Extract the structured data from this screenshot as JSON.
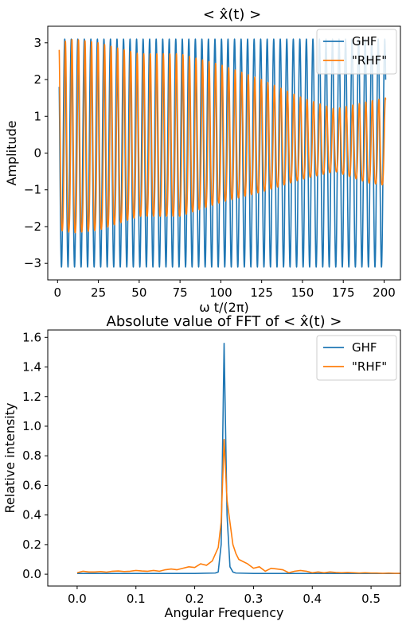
{
  "chart_data": [
    {
      "type": "line",
      "title": "< x̂(t) >",
      "xlabel": "ω t/(2π)",
      "ylabel": "Amplitude",
      "xlim": [
        -6,
        210
      ],
      "ylim": [
        -3.45,
        3.45
      ],
      "xticks": [
        0,
        25,
        50,
        75,
        100,
        125,
        150,
        175,
        200
      ],
      "yticks": [
        -3,
        -2,
        -1,
        0,
        1,
        2,
        3
      ],
      "legend_position": "top-right",
      "colors": [
        "#1f77b4",
        "#ff7f0e"
      ],
      "series": [
        {
          "name": "GHF",
          "description": "sinusoid, amplitude 3.1, period ~4 units",
          "x_range": [
            1,
            201
          ],
          "amplitude": 3.1,
          "period": 4.0,
          "phase_offset_at_x0": 0.95
        },
        {
          "name": "\"RHF\"",
          "description": "oscillation with decaying/varying envelope",
          "x_range": [
            1,
            201
          ],
          "period": 4.0,
          "envelope": {
            "x": [
              1,
              10,
              25,
              50,
              75,
              100,
              125,
              150,
              170,
              190,
              201
            ],
            "amplitude": [
              3.0,
              3.1,
              3.0,
              2.6,
              2.6,
              2.2,
              1.8,
              1.3,
              1.0,
              1.3,
              1.4
            ],
            "center": [
              0.0,
              0.0,
              0.0,
              0.1,
              0.1,
              0.2,
              0.2,
              0.2,
              0.2,
              0.1,
              0.1
            ]
          }
        }
      ]
    },
    {
      "type": "line",
      "title": "Absolute value of FFT of  < x̂(t) >",
      "xlabel": "Angular Frequency",
      "ylabel": "Relative intensity",
      "xlim": [
        -0.05,
        0.55
      ],
      "ylim": [
        -0.08,
        1.65
      ],
      "xticks": [
        0.0,
        0.1,
        0.2,
        0.3,
        0.4,
        0.5
      ],
      "yticks": [
        0.0,
        0.2,
        0.4,
        0.6,
        0.8,
        1.0,
        1.2,
        1.4,
        1.6
      ],
      "legend_position": "top-right",
      "colors": [
        "#1f77b4",
        "#ff7f0e"
      ],
      "series": [
        {
          "name": "GHF",
          "x": [
            0.0,
            0.05,
            0.1,
            0.15,
            0.2,
            0.235,
            0.24,
            0.245,
            0.25,
            0.255,
            0.26,
            0.265,
            0.27,
            0.3,
            0.35,
            0.4,
            0.45,
            0.5,
            0.55
          ],
          "y": [
            0.005,
            0.005,
            0.005,
            0.005,
            0.005,
            0.008,
            0.015,
            0.2,
            1.56,
            0.4,
            0.05,
            0.015,
            0.008,
            0.005,
            0.005,
            0.005,
            0.005,
            0.005,
            0.005
          ]
        },
        {
          "name": "\"RHF\"",
          "x": [
            0.0,
            0.01,
            0.02,
            0.03,
            0.04,
            0.05,
            0.06,
            0.07,
            0.08,
            0.09,
            0.1,
            0.11,
            0.12,
            0.13,
            0.14,
            0.15,
            0.16,
            0.17,
            0.18,
            0.19,
            0.2,
            0.21,
            0.22,
            0.23,
            0.24,
            0.245,
            0.25,
            0.255,
            0.26,
            0.265,
            0.27,
            0.275,
            0.28,
            0.29,
            0.3,
            0.31,
            0.32,
            0.33,
            0.34,
            0.35,
            0.36,
            0.37,
            0.38,
            0.39,
            0.4,
            0.41,
            0.42,
            0.43,
            0.44,
            0.45,
            0.46,
            0.47,
            0.48,
            0.49,
            0.5,
            0.51,
            0.52,
            0.53,
            0.54,
            0.55
          ],
          "y": [
            0.01,
            0.02,
            0.015,
            0.015,
            0.018,
            0.014,
            0.02,
            0.022,
            0.018,
            0.02,
            0.025,
            0.022,
            0.02,
            0.025,
            0.02,
            0.03,
            0.035,
            0.03,
            0.04,
            0.05,
            0.045,
            0.07,
            0.06,
            0.09,
            0.18,
            0.35,
            0.91,
            0.5,
            0.35,
            0.2,
            0.14,
            0.1,
            0.09,
            0.07,
            0.04,
            0.05,
            0.02,
            0.04,
            0.035,
            0.03,
            0.01,
            0.02,
            0.025,
            0.02,
            0.01,
            0.015,
            0.01,
            0.015,
            0.012,
            0.01,
            0.012,
            0.01,
            0.008,
            0.01,
            0.008,
            0.008,
            0.006,
            0.008,
            0.006,
            0.006
          ]
        }
      ]
    }
  ]
}
